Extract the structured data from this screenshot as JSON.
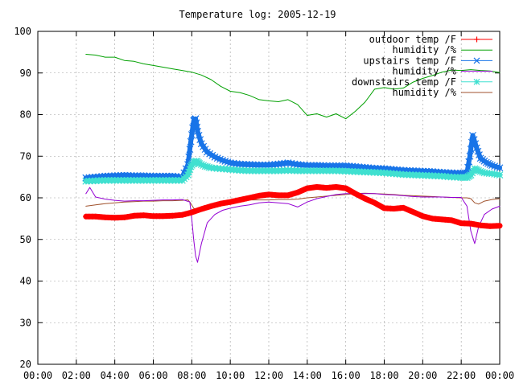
{
  "chart_data": {
    "type": "line",
    "title": "Temperature log: 2005-12-19",
    "xlabel": "",
    "ylabel": "",
    "xlim": [
      0,
      24
    ],
    "ylim": [
      20,
      100
    ],
    "grid": true,
    "legend": "top-right",
    "x_ticks": [
      "00:00",
      "02:00",
      "04:00",
      "06:00",
      "08:00",
      "10:00",
      "12:00",
      "14:00",
      "16:00",
      "18:00",
      "20:00",
      "22:00",
      "00:00"
    ],
    "y_ticks": [
      "20",
      "30",
      "40",
      "50",
      "60",
      "70",
      "80",
      "90",
      "100"
    ],
    "series": [
      {
        "name": "outdoor temp /F",
        "color": "#ff0000",
        "marker": "plus",
        "x": [
          2.5,
          3.0,
          3.5,
          4.0,
          4.5,
          5.0,
          5.5,
          6.0,
          6.5,
          7.0,
          7.5,
          8.0,
          8.5,
          9.0,
          9.5,
          10.0,
          10.5,
          11.0,
          11.5,
          12.0,
          12.5,
          13.0,
          13.5,
          14.0,
          14.5,
          15.0,
          15.5,
          16.0,
          16.5,
          17.0,
          17.5,
          18.0,
          18.5,
          19.0,
          19.5,
          20.0,
          20.5,
          21.0,
          21.5,
          22.0,
          22.5,
          23.0,
          23.5,
          24.0
        ],
        "y": [
          55.5,
          55.5,
          55.3,
          55.2,
          55.3,
          55.7,
          55.8,
          55.6,
          55.6,
          55.7,
          55.9,
          56.5,
          57.3,
          58.0,
          58.6,
          59.0,
          59.5,
          60.0,
          60.5,
          60.8,
          60.6,
          60.6,
          61.3,
          62.3,
          62.6,
          62.4,
          62.6,
          62.3,
          61.0,
          59.8,
          58.8,
          57.5,
          57.4,
          57.6,
          56.6,
          55.6,
          55.0,
          54.8,
          54.6,
          53.9,
          53.8,
          53.4,
          53.2,
          53.3
        ]
      },
      {
        "name": "humidity /%",
        "color": "#00a000",
        "marker": "",
        "x": [
          2.5,
          3.0,
          3.5,
          4.0,
          4.5,
          5.0,
          5.5,
          6.0,
          6.5,
          7.0,
          7.5,
          8.0,
          8.5,
          9.0,
          9.5,
          10.0,
          10.5,
          11.0,
          11.5,
          12.0,
          12.5,
          13.0,
          13.5,
          14.0,
          14.5,
          15.0,
          15.5,
          16.0,
          16.5,
          17.0,
          17.5,
          18.0,
          18.5,
          19.0,
          19.5,
          20.0,
          20.5,
          21.0,
          21.5,
          22.0,
          22.5,
          23.0,
          23.5,
          24.0
        ],
        "y": [
          94.5,
          94.3,
          93.8,
          93.8,
          93.0,
          92.8,
          92.2,
          91.8,
          91.4,
          91.0,
          90.6,
          90.2,
          89.5,
          88.4,
          86.8,
          85.6,
          85.3,
          84.6,
          83.6,
          83.3,
          83.1,
          83.6,
          82.4,
          79.8,
          80.2,
          79.4,
          80.2,
          79.0,
          80.8,
          83.0,
          86.1,
          86.5,
          86.1,
          86.4,
          87.8,
          88.7,
          89.4,
          90.2,
          90.7,
          90.6,
          90.8,
          90.6,
          90.5,
          90.1
        ]
      },
      {
        "name": "upstairs temp /F",
        "color": "#1874e8",
        "marker": "x",
        "x": [
          2.5,
          3.0,
          3.5,
          4.0,
          4.5,
          5.0,
          5.5,
          6.0,
          6.5,
          7.0,
          7.5,
          7.8,
          7.95,
          8.1,
          8.2,
          8.3,
          8.5,
          8.8,
          9.2,
          9.6,
          10.0,
          10.5,
          11.0,
          11.5,
          12.0,
          12.5,
          13.0,
          13.5,
          14.0,
          14.5,
          15.0,
          15.5,
          16.0,
          16.5,
          17.0,
          17.5,
          18.0,
          18.5,
          19.0,
          19.5,
          20.0,
          20.5,
          21.0,
          21.5,
          22.0,
          22.3,
          22.45,
          22.6,
          22.8,
          23.0,
          23.3,
          23.6,
          24.0
        ],
        "y": [
          64.8,
          65.0,
          65.2,
          65.3,
          65.4,
          65.3,
          65.3,
          65.2,
          65.2,
          65.2,
          65.0,
          68.0,
          73.5,
          78.5,
          79.0,
          76.0,
          73.0,
          71.0,
          69.8,
          69.0,
          68.4,
          68.1,
          68.0,
          67.9,
          67.9,
          68.1,
          68.4,
          68.0,
          67.8,
          67.8,
          67.7,
          67.7,
          67.7,
          67.5,
          67.3,
          67.1,
          67.0,
          66.8,
          66.6,
          66.5,
          66.4,
          66.3,
          66.1,
          66.0,
          65.9,
          66.0,
          70.0,
          75.0,
          72.0,
          69.5,
          68.5,
          67.8,
          67.2
        ]
      },
      {
        "name": "humidity /%",
        "color": "#9400d3",
        "marker": "",
        "x": [
          2.5,
          2.7,
          3.0,
          3.5,
          4.0,
          4.5,
          5.0,
          5.5,
          6.0,
          6.5,
          7.0,
          7.5,
          7.9,
          8.0,
          8.1,
          8.2,
          8.3,
          8.5,
          8.8,
          9.2,
          9.6,
          10.0,
          10.5,
          11.0,
          11.5,
          12.0,
          12.5,
          13.0,
          13.5,
          14.0,
          14.5,
          15.0,
          15.5,
          16.0,
          16.5,
          17.0,
          17.5,
          18.0,
          18.5,
          19.0,
          19.5,
          20.0,
          20.5,
          21.0,
          21.5,
          22.0,
          22.3,
          22.5,
          22.7,
          22.9,
          23.2,
          23.6,
          24.0
        ],
        "y": [
          61.0,
          62.5,
          60.2,
          59.7,
          59.4,
          59.2,
          59.3,
          59.3,
          59.4,
          59.5,
          59.5,
          59.6,
          59.0,
          55.0,
          50.0,
          46.0,
          44.5,
          49.0,
          54.0,
          56.0,
          57.0,
          57.5,
          58.0,
          58.3,
          58.8,
          59.0,
          58.8,
          58.6,
          57.8,
          59.0,
          59.8,
          60.3,
          60.8,
          61.0,
          61.0,
          61.0,
          61.0,
          60.8,
          60.7,
          60.5,
          60.3,
          60.2,
          60.2,
          60.2,
          60.1,
          60.1,
          58.0,
          52.0,
          49.0,
          53.0,
          56.0,
          57.3,
          58.0
        ]
      },
      {
        "name": "downstairs temp /F",
        "color": "#40e0d0",
        "marker": "star",
        "x": [
          2.5,
          3.0,
          3.5,
          4.0,
          4.5,
          5.0,
          5.5,
          6.0,
          6.5,
          7.0,
          7.5,
          7.8,
          7.95,
          8.1,
          8.25,
          8.4,
          8.7,
          9.0,
          9.5,
          10.0,
          10.5,
          11.0,
          11.5,
          12.0,
          12.5,
          13.0,
          13.5,
          14.0,
          14.5,
          15.0,
          15.5,
          16.0,
          16.5,
          17.0,
          17.5,
          18.0,
          18.5,
          19.0,
          19.5,
          20.0,
          20.5,
          21.0,
          21.5,
          22.0,
          22.3,
          22.5,
          22.7,
          22.9,
          23.2,
          23.6,
          24.0
        ],
        "y": [
          64.0,
          64.1,
          64.2,
          64.2,
          64.2,
          64.2,
          64.2,
          64.2,
          64.2,
          64.2,
          64.2,
          65.5,
          67.5,
          68.5,
          68.8,
          68.2,
          67.6,
          67.2,
          67.0,
          66.8,
          66.6,
          66.5,
          66.5,
          66.5,
          66.5,
          66.6,
          66.5,
          66.5,
          66.5,
          66.5,
          66.5,
          66.4,
          66.3,
          66.2,
          66.1,
          66.0,
          65.8,
          65.6,
          65.5,
          65.4,
          65.3,
          65.2,
          65.0,
          64.9,
          64.9,
          65.5,
          67.0,
          66.5,
          66.0,
          65.8,
          65.5
        ]
      },
      {
        "name": "humidity /%",
        "color": "#a0522d",
        "marker": "",
        "x": [
          2.5,
          3.0,
          3.5,
          4.0,
          4.5,
          5.0,
          5.5,
          6.0,
          6.5,
          7.0,
          7.5,
          7.8,
          7.9,
          8.1,
          8.3,
          8.6,
          9.0,
          9.5,
          10.0,
          10.5,
          11.0,
          11.5,
          12.0,
          12.5,
          13.0,
          13.5,
          14.0,
          14.5,
          15.0,
          15.5,
          16.0,
          16.5,
          17.0,
          17.5,
          18.0,
          18.5,
          19.0,
          19.5,
          20.0,
          20.5,
          21.0,
          21.5,
          22.0,
          22.3,
          22.5,
          22.7,
          22.9,
          23.2,
          23.6,
          24.0
        ],
        "y": [
          58.0,
          58.3,
          58.6,
          58.8,
          59.0,
          59.1,
          59.2,
          59.2,
          59.3,
          59.3,
          59.4,
          59.5,
          59.0,
          57.5,
          57.0,
          57.5,
          58.0,
          58.6,
          59.0,
          59.3,
          59.5,
          59.5,
          59.5,
          59.6,
          59.6,
          59.7,
          60.0,
          60.2,
          60.4,
          60.6,
          60.8,
          61.0,
          61.1,
          61.0,
          60.9,
          60.8,
          60.6,
          60.5,
          60.4,
          60.3,
          60.2,
          60.1,
          60.0,
          60.0,
          59.8,
          58.8,
          58.5,
          59.2,
          59.6,
          59.8
        ]
      }
    ]
  }
}
